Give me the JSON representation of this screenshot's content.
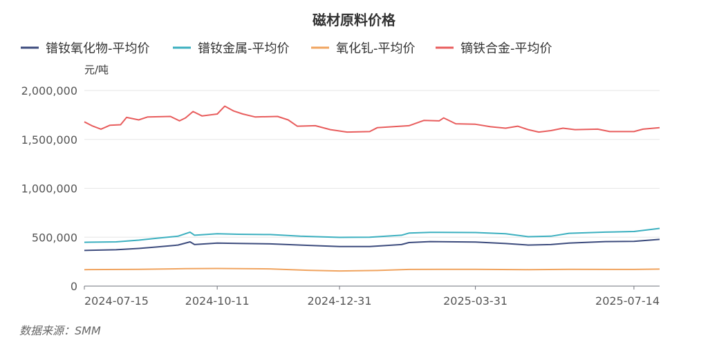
{
  "chart_data": {
    "type": "line",
    "title": "磁材原料价格",
    "unit_label": "元/吨",
    "source_note": "数据来源：SMM",
    "ylim": [
      0,
      2000000
    ],
    "y_ticks": [
      "2,000,000",
      "1,500,000",
      "1,000,000",
      "500,000",
      "0"
    ],
    "y_tick_values": [
      2000000,
      1500000,
      1000000,
      500000,
      0
    ],
    "x_tick_labels": [
      "2024-07-15",
      "2024-10-11",
      "2024-12-31",
      "2025-03-31",
      "2025-07-14"
    ],
    "x_tick_dates": [
      "2024-07-15",
      "2024-10-11",
      "2024-12-31",
      "2025-03-31",
      "2025-07-14"
    ],
    "x_range": [
      "2024-07-15",
      "2025-07-31"
    ],
    "grid": true,
    "legend_position": "top-left",
    "series": [
      {
        "name": "镨钕氧化物-平均价",
        "color": "#3b4a7c",
        "points": [
          [
            "2024-07-15",
            365000
          ],
          [
            "2024-08-05",
            372000
          ],
          [
            "2024-08-20",
            385000
          ],
          [
            "2024-09-01",
            400000
          ],
          [
            "2024-09-15",
            420000
          ],
          [
            "2024-09-23",
            452000
          ],
          [
            "2024-09-26",
            425000
          ],
          [
            "2024-10-11",
            440000
          ],
          [
            "2024-10-25",
            437000
          ],
          [
            "2024-11-15",
            432000
          ],
          [
            "2024-12-05",
            420000
          ],
          [
            "2024-12-31",
            405000
          ],
          [
            "2025-01-20",
            405000
          ],
          [
            "2025-02-10",
            425000
          ],
          [
            "2025-02-15",
            445000
          ],
          [
            "2025-03-01",
            455000
          ],
          [
            "2025-03-31",
            450000
          ],
          [
            "2025-04-20",
            435000
          ],
          [
            "2025-05-05",
            420000
          ],
          [
            "2025-05-20",
            425000
          ],
          [
            "2025-06-01",
            440000
          ],
          [
            "2025-06-25",
            455000
          ],
          [
            "2025-07-14",
            458000
          ],
          [
            "2025-07-31",
            478000
          ]
        ]
      },
      {
        "name": "镨钕金属-平均价",
        "color": "#3aafbf",
        "points": [
          [
            "2024-07-15",
            448000
          ],
          [
            "2024-08-05",
            452000
          ],
          [
            "2024-08-20",
            470000
          ],
          [
            "2024-09-01",
            490000
          ],
          [
            "2024-09-15",
            510000
          ],
          [
            "2024-09-23",
            552000
          ],
          [
            "2024-09-26",
            520000
          ],
          [
            "2024-10-11",
            535000
          ],
          [
            "2024-10-25",
            530000
          ],
          [
            "2024-11-15",
            527000
          ],
          [
            "2024-12-05",
            510000
          ],
          [
            "2024-12-31",
            498000
          ],
          [
            "2025-01-20",
            500000
          ],
          [
            "2025-02-10",
            520000
          ],
          [
            "2025-02-15",
            542000
          ],
          [
            "2025-03-01",
            550000
          ],
          [
            "2025-03-31",
            548000
          ],
          [
            "2025-04-20",
            535000
          ],
          [
            "2025-05-05",
            505000
          ],
          [
            "2025-05-20",
            510000
          ],
          [
            "2025-06-01",
            540000
          ],
          [
            "2025-06-25",
            552000
          ],
          [
            "2025-07-14",
            558000
          ],
          [
            "2025-07-31",
            590000
          ]
        ]
      },
      {
        "name": "氧化钆-平均价",
        "color": "#f0a35e",
        "points": [
          [
            "2024-07-15",
            168000
          ],
          [
            "2024-08-20",
            172000
          ],
          [
            "2024-09-20",
            178000
          ],
          [
            "2024-10-11",
            180000
          ],
          [
            "2024-11-15",
            176000
          ],
          [
            "2024-12-10",
            162000
          ],
          [
            "2024-12-31",
            155000
          ],
          [
            "2025-01-25",
            160000
          ],
          [
            "2025-02-15",
            170000
          ],
          [
            "2025-03-31",
            172000
          ],
          [
            "2025-05-05",
            168000
          ],
          [
            "2025-06-01",
            172000
          ],
          [
            "2025-07-14",
            170000
          ],
          [
            "2025-07-31",
            174000
          ]
        ]
      },
      {
        "name": "镝铁合金-平均价",
        "color": "#e85c5c",
        "points": [
          [
            "2024-07-15",
            1680000
          ],
          [
            "2024-07-20",
            1640000
          ],
          [
            "2024-07-26",
            1605000
          ],
          [
            "2024-08-01",
            1645000
          ],
          [
            "2024-08-08",
            1650000
          ],
          [
            "2024-08-12",
            1725000
          ],
          [
            "2024-08-20",
            1700000
          ],
          [
            "2024-08-26",
            1730000
          ],
          [
            "2024-09-10",
            1735000
          ],
          [
            "2024-09-16",
            1690000
          ],
          [
            "2024-09-20",
            1720000
          ],
          [
            "2024-09-25",
            1785000
          ],
          [
            "2024-10-01",
            1740000
          ],
          [
            "2024-10-11",
            1760000
          ],
          [
            "2024-10-16",
            1840000
          ],
          [
            "2024-10-22",
            1790000
          ],
          [
            "2024-10-28",
            1760000
          ],
          [
            "2024-11-05",
            1730000
          ],
          [
            "2024-11-20",
            1735000
          ],
          [
            "2024-11-27",
            1700000
          ],
          [
            "2024-12-03",
            1635000
          ],
          [
            "2024-12-15",
            1640000
          ],
          [
            "2024-12-25",
            1600000
          ],
          [
            "2025-01-05",
            1575000
          ],
          [
            "2025-01-20",
            1580000
          ],
          [
            "2025-01-25",
            1620000
          ],
          [
            "2025-02-15",
            1640000
          ],
          [
            "2025-02-25",
            1695000
          ],
          [
            "2025-03-07",
            1690000
          ],
          [
            "2025-03-10",
            1720000
          ],
          [
            "2025-03-18",
            1660000
          ],
          [
            "2025-03-31",
            1655000
          ],
          [
            "2025-04-10",
            1630000
          ],
          [
            "2025-04-20",
            1615000
          ],
          [
            "2025-04-28",
            1635000
          ],
          [
            "2025-05-05",
            1600000
          ],
          [
            "2025-05-12",
            1575000
          ],
          [
            "2025-05-20",
            1590000
          ],
          [
            "2025-05-28",
            1615000
          ],
          [
            "2025-06-05",
            1600000
          ],
          [
            "2025-06-20",
            1605000
          ],
          [
            "2025-06-28",
            1580000
          ],
          [
            "2025-07-14",
            1580000
          ],
          [
            "2025-07-20",
            1605000
          ],
          [
            "2025-07-31",
            1620000
          ]
        ]
      }
    ]
  }
}
